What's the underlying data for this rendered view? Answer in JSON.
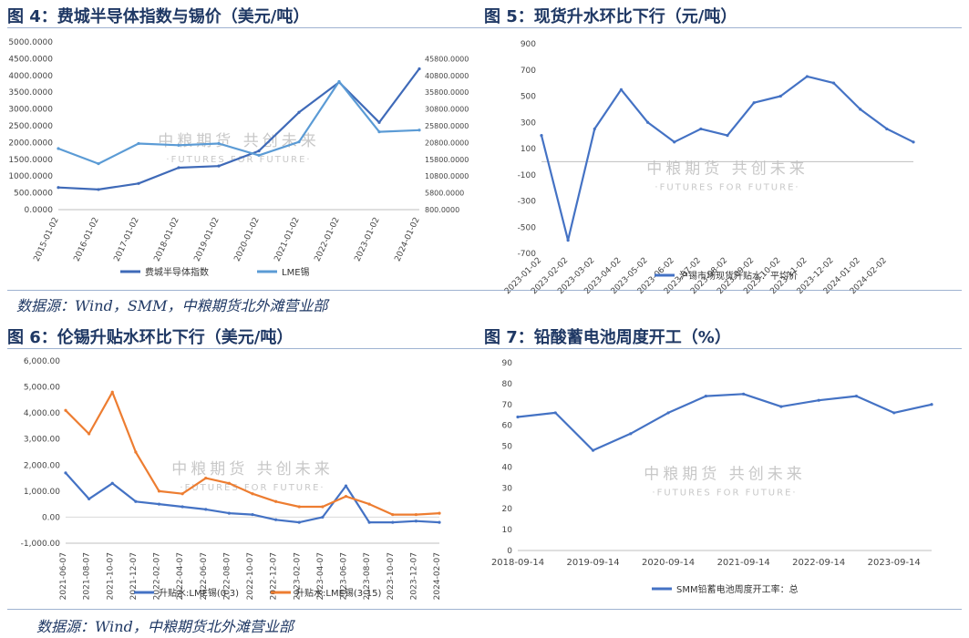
{
  "charts": [
    {
      "panel_title": "图 4：费城半导体指数与锡价（美元/吨）",
      "chart_data": {
        "type": "line",
        "title": "图 4：费城半导体指数与锡价（美元/吨）",
        "x": [
          "2015-01-02",
          "2016-01-02",
          "2017-01-02",
          "2018-01-02",
          "2019-01-02",
          "2020-01-02",
          "2021-01-02",
          "2022-01-02",
          "2023-01-02",
          "2024-01-02"
        ],
        "x_ticks": [
          "2015-01-02",
          "2016-01-02",
          "2017-01-02",
          "2018-01-02",
          "2019-01-02",
          "2020-01-02",
          "2021-01-02",
          "2022-01-02",
          "2023-01-02",
          "2024-01-02"
        ],
        "y_left_ticks": [
          "0.0000",
          "500.0000",
          "1000.0000",
          "1500.0000",
          "2000.0000",
          "2500.0000",
          "3000.0000",
          "3500.0000",
          "4000.0000",
          "4500.0000",
          "5000.0000"
        ],
        "y_left_lim": [
          0,
          5000
        ],
        "y_right_ticks": [
          "800.0000",
          "5800.0000",
          "10800.0000",
          "15800.0000",
          "20800.0000",
          "25800.0000",
          "30800.0000",
          "35800.0000",
          "40800.0000",
          "45800.0000"
        ],
        "y_right_lim": [
          800,
          50800
        ],
        "series": [
          {
            "name": "费城半导体指数",
            "color": "#3f6ab8",
            "axis": "left",
            "values": [
              660,
              600,
              780,
              1250,
              1300,
              1750,
              2900,
              3800,
              2600,
              4200
            ]
          },
          {
            "name": "LME锡",
            "color": "#5b9bd5",
            "axis": "right",
            "values": [
              19000,
              14500,
              20500,
              20000,
              20500,
              17000,
              21000,
              39000,
              24000,
              24500
            ]
          }
        ],
        "watermark_cn": "中粮期货 共创未来",
        "watermark_en": "·FUTURES FOR FUTURE·"
      }
    },
    {
      "panel_title": "图 5：现货升水环比下行（元/吨）",
      "chart_data": {
        "type": "line",
        "title": "图 5：现货升水环比下行（元/吨）",
        "x": [
          "2023-01-02",
          "2023-02-02",
          "2023-03-02",
          "2023-04-02",
          "2023-05-02",
          "2023-06-02",
          "2023-07-02",
          "2023-08-02",
          "2023-09-02",
          "2023-10-02",
          "2023-11-02",
          "2023-12-02",
          "2024-01-02",
          "2024-02-02",
          "2024-02-28"
        ],
        "x_ticks": [
          "2023-01-02",
          "2023-02-02",
          "2023-03-02",
          "2023-04-02",
          "2023-05-02",
          "2023-06-02",
          "2023-07-02",
          "2023-08-02",
          "2023-09-02",
          "2023-10-02",
          "2023-11-02",
          "2023-12-02",
          "2024-01-02",
          "2024-02-02"
        ],
        "y_ticks": [
          "-700",
          "-500",
          "-300",
          "-100",
          "100",
          "300",
          "500",
          "700",
          "900"
        ],
        "ylim": [
          -700,
          900
        ],
        "series": [
          {
            "name": "沪锡市场现货升贴水：平均价",
            "color": "#4472c4",
            "values": [
              200,
              -600,
              250,
              550,
              300,
              150,
              250,
              200,
              450,
              500,
              650,
              600,
              400,
              250,
              150
            ]
          }
        ],
        "watermark_cn": "中粮期货 共创未来",
        "watermark_en": "·FUTURES FOR FUTURE·"
      }
    },
    {
      "panel_title": "图 6：伦锡升贴水环比下行（美元/吨）",
      "chart_data": {
        "type": "line",
        "title": "图 6：伦锡升贴水环比下行（美元/吨）",
        "x": [
          "2021-06-07",
          "2021-08-07",
          "2021-10-07",
          "2021-12-07",
          "2022-02-07",
          "2022-04-07",
          "2022-06-07",
          "2022-08-07",
          "2022-10-07",
          "2022-12-07",
          "2023-02-07",
          "2023-04-07",
          "2023-06-07",
          "2023-08-07",
          "2023-10-07",
          "2023-12-07",
          "2024-02-07"
        ],
        "x_ticks": [
          "2021-06-07",
          "2021-08-07",
          "2021-10-07",
          "2021-12-07",
          "2022-02-07",
          "2022-04-07",
          "2022-06-07",
          "2022-08-07",
          "2022-10-07",
          "2022-12-07",
          "2023-02-07",
          "2023-04-07",
          "2023-06-07",
          "2023-08-07",
          "2023-10-07",
          "2023-12-07",
          "2024-02-07"
        ],
        "y_ticks": [
          "-1,000.00",
          "0.00",
          "1,000.00",
          "2,000.00",
          "3,000.00",
          "4,000.00",
          "5,000.00",
          "6,000.00"
        ],
        "ylim": [
          -1000,
          6000
        ],
        "series": [
          {
            "name": "升贴水:LME锡(0-3)",
            "color": "#4472c4",
            "values": [
              1700,
              700,
              1300,
              600,
              500,
              400,
              300,
              150,
              100,
              -100,
              -200,
              0,
              1200,
              -200,
              -200,
              -150,
              -200
            ]
          },
          {
            "name": "升贴水:LME锡(3-15)",
            "color": "#ed7d31",
            "values": [
              4100,
              3200,
              4800,
              2500,
              1000,
              900,
              1500,
              1300,
              900,
              600,
              400,
              400,
              800,
              500,
              100,
              100,
              150
            ]
          }
        ],
        "watermark_cn": "中粮期货 共创未来",
        "watermark_en": "·FUTURES FOR FUTURE·"
      }
    },
    {
      "panel_title": "图 7：铅酸蓄电池周度开工（%）",
      "chart_data": {
        "type": "line",
        "title": "图 7：铅酸蓄电池周度开工（%）",
        "x": [
          "2018-09-14",
          "2019-03-14",
          "2019-09-14",
          "2020-03-14",
          "2020-09-14",
          "2021-03-14",
          "2021-09-14",
          "2022-03-14",
          "2022-09-14",
          "2023-03-14",
          "2023-09-14",
          "2024-02-14"
        ],
        "x_ticks": [
          "2018-09-14",
          "2019-09-14",
          "2020-09-14",
          "2021-09-14",
          "2022-09-14",
          "2023-09-14"
        ],
        "y_ticks": [
          "0",
          "10",
          "20",
          "30",
          "40",
          "50",
          "60",
          "70",
          "80",
          "90"
        ],
        "ylim": [
          0,
          90
        ],
        "series": [
          {
            "name": "SMM铅蓄电池周度开工率：总",
            "color": "#4472c4",
            "values": [
              64,
              66,
              48,
              56,
              66,
              74,
              75,
              69,
              72,
              74,
              66,
              70
            ]
          }
        ],
        "watermark_cn": "中粮期货 共创未来",
        "watermark_en": "·FUTURES FOR FUTURE·"
      }
    }
  ],
  "sources": {
    "top": "数据源：Wind，SMM，中粮期货北外滩营业部",
    "bottom": "数据源：Wind，中粮期货北外滩营业部"
  }
}
